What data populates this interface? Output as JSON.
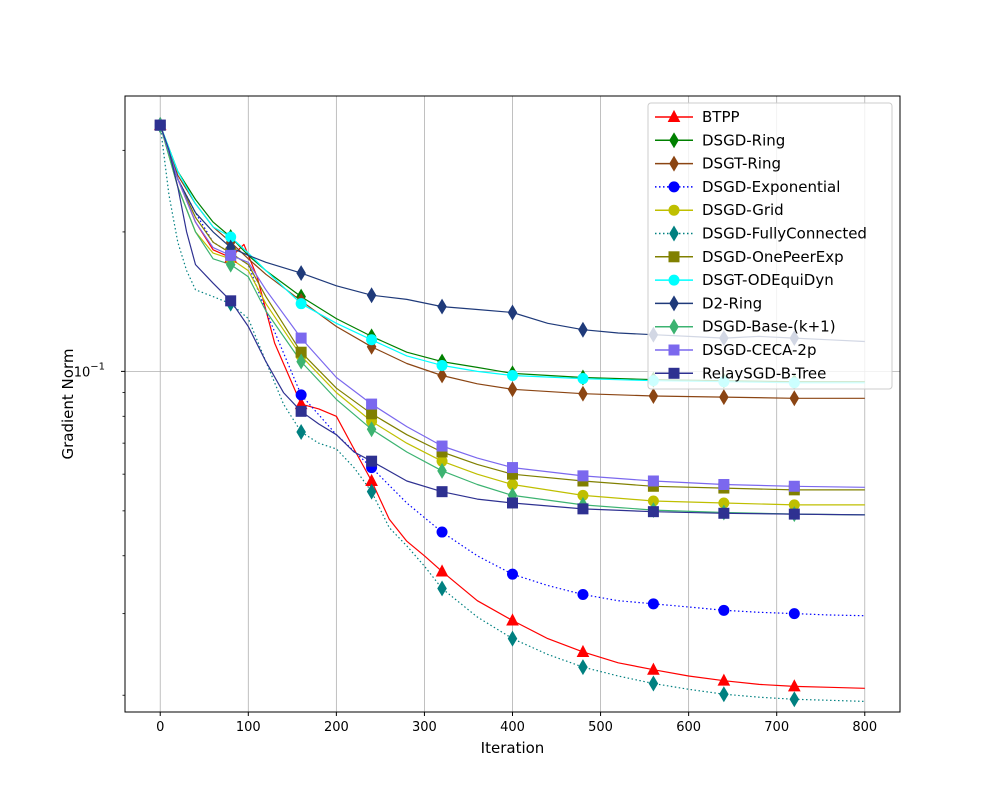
{
  "chart_data": {
    "type": "line",
    "title": "",
    "xlabel": "Iteration",
    "ylabel": "Gradient Norm",
    "yscale": "log",
    "xlim": [
      -40,
      840
    ],
    "ylim": [
      0.0184,
      0.393
    ],
    "x_ticks": [
      0,
      100,
      200,
      300,
      400,
      500,
      600,
      700,
      800
    ],
    "x_tick_labels": [
      "0",
      "100",
      "200",
      "300",
      "400",
      "500",
      "600",
      "700",
      "800"
    ],
    "y_major_ticks": [
      0.1
    ],
    "y_major_tick_labels": [
      "10",
      "−1"
    ],
    "grid": true,
    "legend_location": "upper right",
    "series": [
      {
        "name": "BTPP",
        "color": "#ff0000",
        "dash": "solid",
        "marker": "triangle",
        "x": [
          0,
          20,
          40,
          60,
          80,
          95,
          110,
          130,
          160,
          180,
          200,
          220,
          240,
          260,
          280,
          300,
          320,
          360,
          400,
          440,
          480,
          520,
          560,
          600,
          640,
          680,
          720,
          760,
          800
        ],
        "y": [
          0.34,
          0.26,
          0.21,
          0.183,
          0.176,
          0.188,
          0.16,
          0.115,
          0.085,
          0.083,
          0.08,
          0.068,
          0.058,
          0.048,
          0.043,
          0.04,
          0.037,
          0.032,
          0.029,
          0.0265,
          0.0248,
          0.0235,
          0.0227,
          0.022,
          0.0215,
          0.0211,
          0.0209,
          0.0208,
          0.0207
        ]
      },
      {
        "name": "DSGD-Ring",
        "color": "#008000",
        "dash": "solid",
        "marker": "thin-diamond",
        "x": [
          0,
          20,
          40,
          60,
          80,
          100,
          120,
          160,
          200,
          240,
          280,
          320,
          360,
          400,
          480,
          560,
          640,
          720,
          800
        ],
        "y": [
          0.34,
          0.27,
          0.235,
          0.21,
          0.195,
          0.178,
          0.165,
          0.145,
          0.13,
          0.119,
          0.11,
          0.105,
          0.102,
          0.099,
          0.097,
          0.096,
          0.0955,
          0.095,
          0.095
        ]
      },
      {
        "name": "DSGT-Ring",
        "color": "#8b4513",
        "dash": "solid",
        "marker": "thin-diamond",
        "x": [
          0,
          20,
          40,
          60,
          80,
          100,
          120,
          160,
          200,
          240,
          280,
          320,
          360,
          400,
          480,
          560,
          640,
          720,
          800
        ],
        "y": [
          0.34,
          0.265,
          0.23,
          0.205,
          0.19,
          0.175,
          0.162,
          0.142,
          0.125,
          0.113,
          0.104,
          0.098,
          0.094,
          0.0915,
          0.0895,
          0.0885,
          0.088,
          0.0875,
          0.0875
        ]
      },
      {
        "name": "DSGD-Exponential",
        "color": "#0000ff",
        "dash": "dotted",
        "marker": "circle",
        "x": [
          0,
          20,
          40,
          60,
          80,
          100,
          120,
          160,
          200,
          240,
          280,
          320,
          360,
          400,
          440,
          480,
          520,
          560,
          600,
          640,
          680,
          720,
          760,
          800
        ],
        "y": [
          0.34,
          0.26,
          0.22,
          0.19,
          0.18,
          0.17,
          0.135,
          0.089,
          0.073,
          0.062,
          0.052,
          0.045,
          0.04,
          0.0365,
          0.0345,
          0.033,
          0.032,
          0.0315,
          0.031,
          0.0305,
          0.0302,
          0.03,
          0.0298,
          0.0297
        ]
      },
      {
        "name": "DSGD-Grid",
        "color": "#bfbf00",
        "dash": "solid",
        "marker": "circle",
        "x": [
          0,
          20,
          40,
          60,
          80,
          100,
          120,
          160,
          200,
          240,
          280,
          320,
          360,
          400,
          480,
          560,
          640,
          720,
          800
        ],
        "y": [
          0.34,
          0.25,
          0.2,
          0.18,
          0.175,
          0.165,
          0.14,
          0.108,
          0.09,
          0.078,
          0.07,
          0.064,
          0.06,
          0.057,
          0.054,
          0.0525,
          0.052,
          0.0515,
          0.0515
        ]
      },
      {
        "name": "DSGD-FullyConnected",
        "color": "#008080",
        "dash": "dotted",
        "marker": "thin-diamond",
        "x": [
          0,
          10,
          20,
          30,
          40,
          60,
          80,
          100,
          120,
          140,
          160,
          180,
          200,
          220,
          240,
          260,
          280,
          300,
          320,
          360,
          400,
          440,
          480,
          520,
          560,
          600,
          640,
          680,
          720,
          760,
          800
        ],
        "y": [
          0.34,
          0.24,
          0.19,
          0.165,
          0.15,
          0.145,
          0.14,
          0.13,
          0.105,
          0.085,
          0.074,
          0.07,
          0.068,
          0.062,
          0.055,
          0.046,
          0.042,
          0.038,
          0.034,
          0.0295,
          0.0265,
          0.0245,
          0.023,
          0.022,
          0.0212,
          0.0206,
          0.0201,
          0.0198,
          0.0196,
          0.0195,
          0.0194
        ]
      },
      {
        "name": "DSGD-OnePeerExp",
        "color": "#808000",
        "dash": "solid",
        "marker": "square",
        "x": [
          0,
          20,
          40,
          60,
          80,
          100,
          120,
          160,
          200,
          240,
          280,
          320,
          360,
          400,
          480,
          560,
          640,
          720,
          800
        ],
        "y": [
          0.34,
          0.26,
          0.215,
          0.19,
          0.18,
          0.17,
          0.145,
          0.11,
          0.092,
          0.081,
          0.073,
          0.067,
          0.063,
          0.06,
          0.058,
          0.0565,
          0.056,
          0.0555,
          0.0555
        ]
      },
      {
        "name": "DSGT-ODEquiDyn",
        "color": "#00ffff",
        "dash": "solid",
        "marker": "circle",
        "x": [
          0,
          20,
          40,
          60,
          80,
          100,
          120,
          160,
          200,
          240,
          280,
          320,
          360,
          400,
          480,
          560,
          640,
          720,
          800
        ],
        "y": [
          0.34,
          0.27,
          0.23,
          0.205,
          0.195,
          0.18,
          0.165,
          0.14,
          0.127,
          0.117,
          0.108,
          0.103,
          0.1,
          0.098,
          0.0965,
          0.0955,
          0.095,
          0.0945,
          0.0945
        ]
      },
      {
        "name": "D2-Ring",
        "color": "#1f3a7a",
        "dash": "solid",
        "marker": "thin-diamond",
        "x": [
          0,
          20,
          40,
          60,
          80,
          100,
          120,
          160,
          200,
          240,
          280,
          320,
          360,
          400,
          440,
          480,
          520,
          560,
          600,
          640,
          680,
          720,
          760,
          800
        ],
        "y": [
          0.34,
          0.26,
          0.22,
          0.2,
          0.185,
          0.178,
          0.172,
          0.163,
          0.153,
          0.146,
          0.143,
          0.138,
          0.136,
          0.134,
          0.127,
          0.123,
          0.121,
          0.12,
          0.119,
          0.118,
          0.119,
          0.118,
          0.117,
          0.116
        ]
      },
      {
        "name": "DSGD-Base-(k+1)",
        "color": "#3cb371",
        "dash": "solid",
        "marker": "thin-diamond",
        "x": [
          0,
          20,
          40,
          60,
          80,
          100,
          120,
          160,
          200,
          240,
          280,
          320,
          360,
          400,
          480,
          560,
          640,
          720,
          800
        ],
        "y": [
          0.34,
          0.25,
          0.2,
          0.175,
          0.17,
          0.16,
          0.135,
          0.105,
          0.087,
          0.075,
          0.067,
          0.061,
          0.057,
          0.054,
          0.0515,
          0.0502,
          0.0496,
          0.0492,
          0.049
        ]
      },
      {
        "name": "DSGD-CECA-2p",
        "color": "#7b68ee",
        "dash": "solid",
        "marker": "square",
        "x": [
          0,
          20,
          40,
          60,
          80,
          100,
          120,
          160,
          200,
          240,
          280,
          320,
          360,
          400,
          480,
          560,
          640,
          720,
          800
        ],
        "y": [
          0.34,
          0.26,
          0.21,
          0.185,
          0.178,
          0.172,
          0.15,
          0.118,
          0.097,
          0.085,
          0.076,
          0.069,
          0.065,
          0.062,
          0.0595,
          0.058,
          0.057,
          0.0565,
          0.0562
        ]
      },
      {
        "name": "RelaySGD-B-Tree",
        "color": "#2e3191",
        "dash": "solid",
        "marker": "square",
        "x": [
          0,
          10,
          20,
          30,
          40,
          60,
          80,
          100,
          120,
          140,
          160,
          180,
          200,
          220,
          240,
          280,
          320,
          360,
          400,
          480,
          560,
          640,
          720,
          800
        ],
        "y": [
          0.34,
          0.3,
          0.25,
          0.2,
          0.17,
          0.155,
          0.142,
          0.125,
          0.105,
          0.09,
          0.082,
          0.077,
          0.073,
          0.067,
          0.064,
          0.058,
          0.055,
          0.053,
          0.052,
          0.0505,
          0.0498,
          0.0494,
          0.0492,
          0.049
        ]
      }
    ]
  }
}
